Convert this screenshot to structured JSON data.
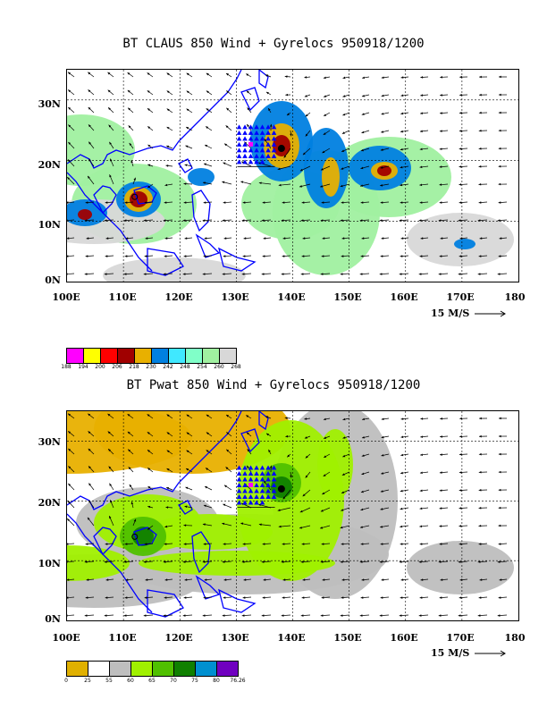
{
  "top": {
    "title": "BT CLAUS 850 Wind + Gyrelocs 950918/1200",
    "lat_labels": [
      "30N",
      "20N",
      "10N",
      "0N"
    ],
    "lon_labels": [
      "100E",
      "110E",
      "120E",
      "130E",
      "140E",
      "150E",
      "160E",
      "170E",
      "180"
    ],
    "scale_label": "15 M/S",
    "legend": {
      "colors": [
        "#ff00ff",
        "#ffff00",
        "#ff0000",
        "#a00000",
        "#e8b000",
        "#0080e0",
        "#40e8ff",
        "#80ffc8",
        "#a0f0a0",
        "#d8d8d8"
      ],
      "labels": [
        "188",
        "194",
        "200",
        "206",
        "218",
        "230",
        "242",
        "248",
        "254",
        "260",
        "268"
      ]
    }
  },
  "bottom": {
    "title": "BT Pwat 850 Wind + Gyrelocs 950918/1200",
    "lat_labels": [
      "30N",
      "20N",
      "10N",
      "0N"
    ],
    "lon_labels": [
      "100E",
      "110E",
      "120E",
      "130E",
      "140E",
      "150E",
      "160E",
      "170E",
      "180"
    ],
    "scale_label": "15 M/S",
    "legend": {
      "colors": [
        "#e0b000",
        "#ffffff",
        "#bebebe",
        "#a0f000",
        "#50c000",
        "#108000",
        "#0090d0",
        "#7000c0"
      ],
      "labels": [
        "0",
        "25",
        "55",
        "60",
        "65",
        "70",
        "75",
        "80",
        "76.26"
      ]
    }
  },
  "colors": {
    "coast": "#0000ff",
    "grid": "#000000",
    "gyreloc_marker": "#0000ff",
    "gyreloc_center": "#ff00ff"
  }
}
